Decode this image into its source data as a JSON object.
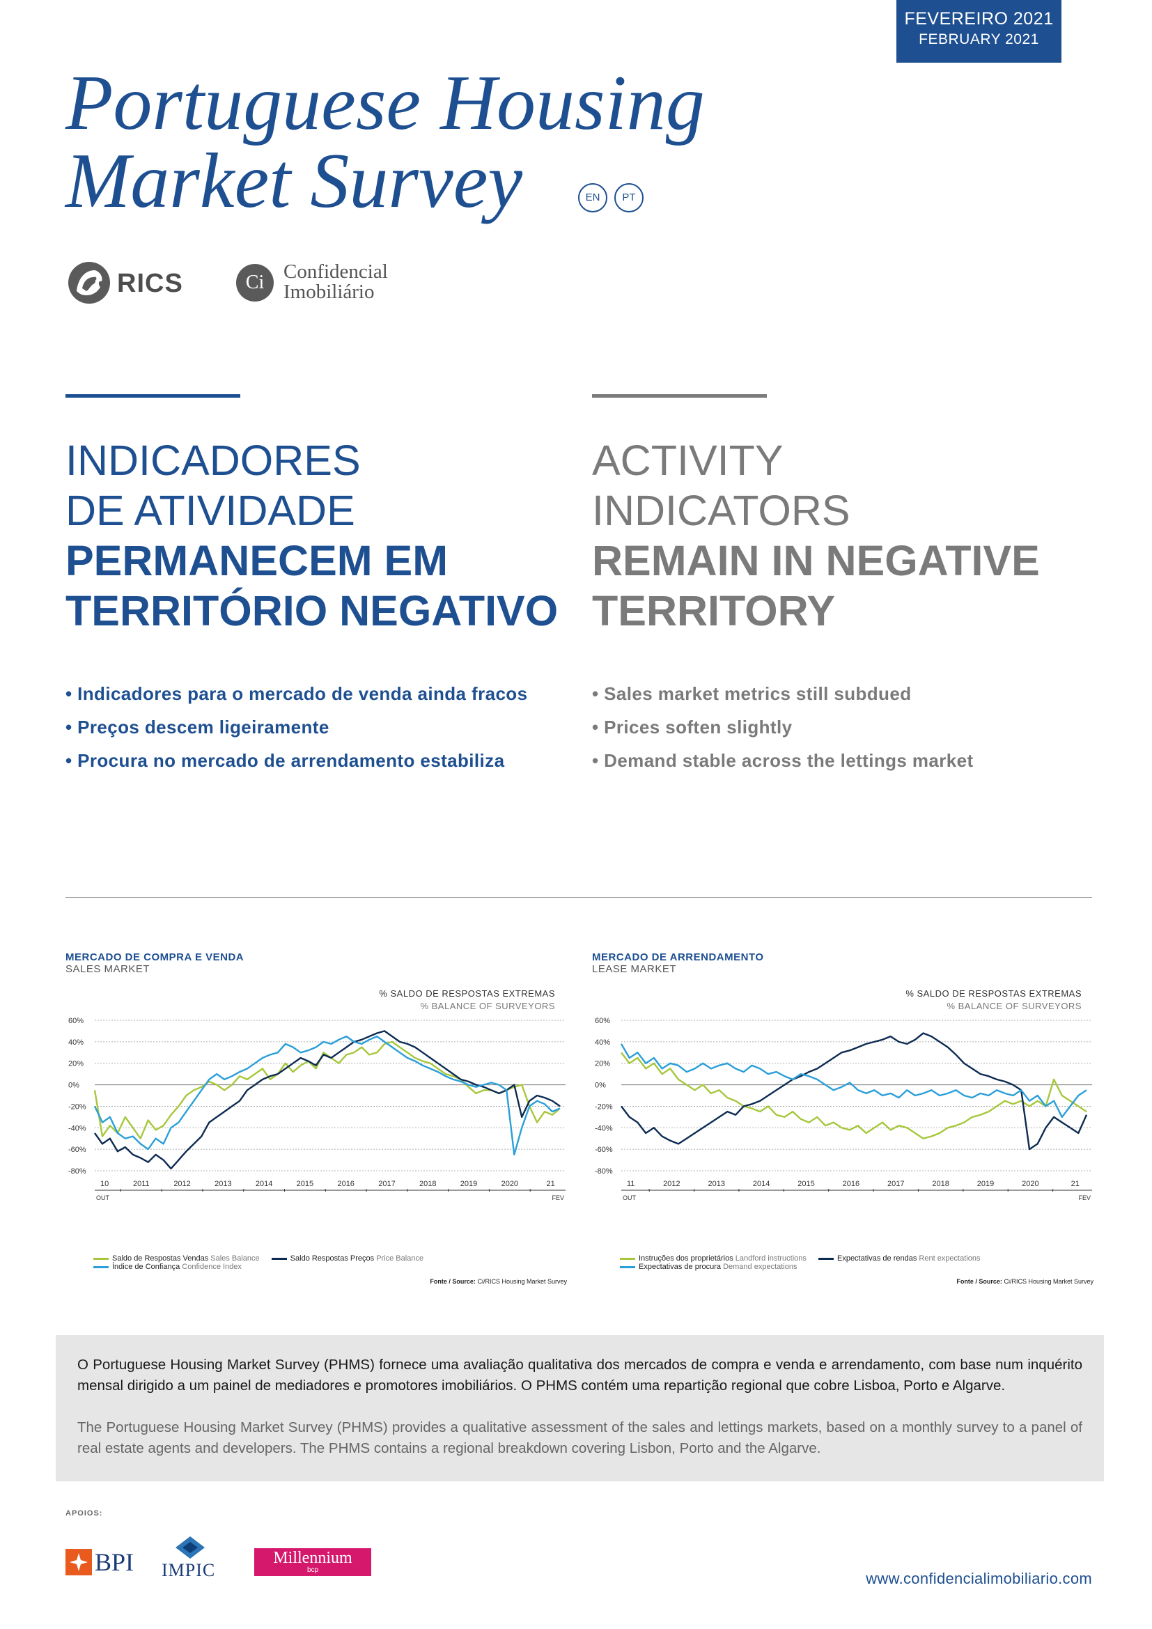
{
  "header": {
    "date_pt": "FEVEREIRO 2021",
    "date_en": "FEBRUARY 2021"
  },
  "title": {
    "line1": "Portuguese Housing",
    "line2": "Market Survey",
    "lang_en": "EN",
    "lang_pt": "PT"
  },
  "logos": {
    "rics": "RICS",
    "ci_mark": "Ci",
    "ci_line1": "Confidencial",
    "ci_line2": "Imobiliário"
  },
  "headline_pt": {
    "light1": "INDICADORES",
    "light2": "DE ATIVIDADE",
    "bold1": "PERMANECEM EM",
    "bold2": "TERRITÓRIO NEGATIVO"
  },
  "headline_en": {
    "light1": "ACTIVITY",
    "light2": "INDICATORS",
    "bold1": "REMAIN IN NEGATIVE",
    "bold2": "TERRITORY"
  },
  "bullets_pt": [
    "Indicadores para o mercado de venda ainda fracos",
    "Preços descem ligeiramente",
    "Procura no mercado de arrendamento estabiliza"
  ],
  "bullets_en": [
    "Sales market metrics still subdued",
    "Prices soften slightly",
    "Demand stable across the lettings market"
  ],
  "charts": {
    "sales": {
      "title": "MERCADO DE COMPRA E VENDA",
      "subtitle": "SALES MARKET",
      "axis_pt": "% SALDO DE RESPOSTAS EXTREMAS",
      "axis_en": "% BALANCE OF SURVEYORS",
      "start_label": "OUT",
      "end_label": "FEV",
      "legend": [
        {
          "pt": "Saldo de Respostas Vendas",
          "en": "Sales Balance"
        },
        {
          "pt": "Saldo Respostas Preços",
          "en": "Price Balance"
        },
        {
          "pt": "Índice de Confiança",
          "en": "Confidence Index"
        }
      ],
      "source_label": "Fonte / Source:",
      "source_text": "Ci/RICS Housing Market Survey"
    },
    "lease": {
      "title": "MERCADO DE ARRENDAMENTO",
      "subtitle": "LEASE MARKET",
      "axis_pt": "% SALDO DE RESPOSTAS EXTREMAS",
      "axis_en": "% BALANCE OF SURVEYORS",
      "start_label": "OUT",
      "end_label": "FEV",
      "legend": [
        {
          "pt": "Instruções dos proprietários",
          "en": "Landford instructions"
        },
        {
          "pt": "Expectativas de rendas",
          "en": "Rent expectations"
        },
        {
          "pt": "Expectativas de procura",
          "en": "Demand expectations"
        }
      ],
      "source_label": "Fonte / Source:",
      "source_text": "Ci/RICS Housing Market Survey"
    }
  },
  "chart_data": [
    {
      "type": "line",
      "title": "MERCADO DE COMPRA E VENDA",
      "subtitle": "SALES MARKET",
      "ylabel": "% SALDO DE RESPOSTAS EXTREMAS / % BALANCE OF SURVEYORS",
      "ylim": [
        -80,
        60
      ],
      "yticks": [
        "60%",
        "40%",
        "20%",
        "0%",
        "-20%",
        "-40%",
        "-60%",
        "-80%"
      ],
      "xticks": [
        "10",
        "2011",
        "2012",
        "2013",
        "2014",
        "2015",
        "2016",
        "2017",
        "2018",
        "2019",
        "2020",
        "21"
      ],
      "x_start": "2010-10",
      "x_end": "2021-02",
      "grid": true,
      "legend_position": "bottom",
      "series": [
        {
          "name": "Saldo de Respostas Vendas Sales Balance",
          "color": "#a6c73b",
          "values": [
            -5,
            -48,
            -38,
            -45,
            -30,
            -40,
            -50,
            -33,
            -42,
            -38,
            -28,
            -20,
            -10,
            -5,
            -2,
            3,
            0,
            -5,
            0,
            8,
            5,
            10,
            15,
            5,
            10,
            20,
            12,
            18,
            22,
            15,
            30,
            25,
            20,
            28,
            30,
            35,
            28,
            30,
            38,
            40,
            35,
            30,
            25,
            22,
            20,
            15,
            10,
            8,
            5,
            -2,
            -8,
            -5,
            -5,
            -8,
            -5,
            -2,
            0,
            -20,
            -35,
            -25,
            -28,
            -22
          ]
        },
        {
          "name": "Saldo Respostas Preços Price Balance",
          "color": "#0d2b52",
          "values": [
            -45,
            -55,
            -50,
            -62,
            -58,
            -65,
            -68,
            -72,
            -65,
            -70,
            -78,
            -70,
            -62,
            -55,
            -48,
            -35,
            -30,
            -25,
            -20,
            -15,
            -5,
            0,
            5,
            8,
            10,
            15,
            20,
            25,
            22,
            18,
            28,
            25,
            30,
            35,
            40,
            42,
            45,
            48,
            50,
            45,
            40,
            38,
            35,
            30,
            25,
            20,
            15,
            10,
            5,
            3,
            0,
            -2,
            -5,
            -8,
            -5,
            0,
            -30,
            -15,
            -10,
            -12,
            -15,
            -20
          ]
        },
        {
          "name": "Índice de Confiança Confidence Index",
          "color": "#2a9fd8",
          "values": [
            -20,
            -35,
            -30,
            -45,
            -50,
            -48,
            -55,
            -60,
            -50,
            -55,
            -40,
            -35,
            -25,
            -15,
            -5,
            5,
            10,
            5,
            8,
            12,
            15,
            20,
            25,
            28,
            30,
            38,
            35,
            30,
            32,
            35,
            40,
            38,
            42,
            45,
            40,
            38,
            42,
            45,
            40,
            35,
            30,
            25,
            22,
            18,
            15,
            12,
            8,
            5,
            3,
            0,
            -2,
            0,
            2,
            0,
            -5,
            -65,
            -40,
            -20,
            -15,
            -18,
            -25,
            -22
          ]
        }
      ]
    },
    {
      "type": "line",
      "title": "MERCADO DE ARRENDAMENTO",
      "subtitle": "LEASE MARKET",
      "ylabel": "% SALDO DE RESPOSTAS EXTREMAS / % BALANCE OF SURVEYORS",
      "ylim": [
        -80,
        60
      ],
      "yticks": [
        "60%",
        "40%",
        "20%",
        "0%",
        "-20%",
        "-40%",
        "-60%",
        "-80%"
      ],
      "xticks": [
        "11",
        "2012",
        "2013",
        "2014",
        "2015",
        "2016",
        "2017",
        "2018",
        "2019",
        "2020",
        "21"
      ],
      "x_start": "2011-10",
      "x_end": "2021-02",
      "grid": true,
      "legend_position": "bottom",
      "series": [
        {
          "name": "Instruções dos proprietários Landford instructions",
          "color": "#a6c73b",
          "values": [
            30,
            20,
            25,
            15,
            20,
            10,
            15,
            5,
            0,
            -5,
            0,
            -8,
            -5,
            -12,
            -15,
            -20,
            -22,
            -25,
            -20,
            -28,
            -30,
            -25,
            -32,
            -35,
            -30,
            -38,
            -35,
            -40,
            -42,
            -38,
            -45,
            -40,
            -35,
            -42,
            -38,
            -40,
            -45,
            -50,
            -48,
            -45,
            -40,
            -38,
            -35,
            -30,
            -28,
            -25,
            -20,
            -15,
            -18,
            -15,
            -20,
            -15,
            -20,
            5,
            -10,
            -15,
            -20,
            -25
          ]
        },
        {
          "name": "Expectativas de rendas Rent expectations",
          "color": "#0d2b52",
          "values": [
            -20,
            -30,
            -35,
            -45,
            -40,
            -48,
            -52,
            -55,
            -50,
            -45,
            -40,
            -35,
            -30,
            -25,
            -28,
            -20,
            -18,
            -15,
            -10,
            -5,
            0,
            5,
            8,
            12,
            15,
            20,
            25,
            30,
            32,
            35,
            38,
            40,
            42,
            45,
            40,
            38,
            42,
            48,
            45,
            40,
            35,
            28,
            20,
            15,
            10,
            8,
            5,
            3,
            0,
            -5,
            -60,
            -55,
            -40,
            -30,
            -35,
            -40,
            -45,
            -28
          ]
        },
        {
          "name": "Expectativas de procura Demand expectations",
          "color": "#2a9fd8",
          "values": [
            38,
            25,
            30,
            20,
            25,
            15,
            20,
            18,
            12,
            15,
            20,
            15,
            18,
            20,
            15,
            12,
            18,
            15,
            10,
            12,
            8,
            5,
            10,
            8,
            5,
            0,
            -5,
            -2,
            2,
            -5,
            -8,
            -5,
            -10,
            -8,
            -12,
            -5,
            -10,
            -8,
            -5,
            -10,
            -8,
            -5,
            -10,
            -12,
            -8,
            -10,
            -5,
            -8,
            -10,
            -5,
            -15,
            -10,
            -20,
            -15,
            -30,
            -20,
            -10,
            -5
          ]
        }
      ]
    }
  ],
  "info": {
    "pt": "O Portuguese Housing Market Survey (PHMS) fornece uma avaliação qualitativa dos mercados de compra e venda e arrendamento, com base num inquérito mensal dirigido a um painel de mediadores e promotores imobiliários. O PHMS contém uma repartição regional que cobre Lisboa, Porto e Algarve.",
    "en": "The Portuguese Housing Market Survey (PHMS) provides a qualitative assessment of the sales and lettings markets, based on a monthly survey to a panel of real estate agents and developers. The PHMS contains a regional breakdown covering Lisbon, Porto and the Algarve."
  },
  "sponsors": {
    "label": "APOIOS:",
    "bpi": "BPI",
    "impic": "IMPIC",
    "millennium": "Millennium",
    "millennium_sub": "bcp"
  },
  "footer": {
    "url": "www.confidencialimobiliario.com"
  }
}
